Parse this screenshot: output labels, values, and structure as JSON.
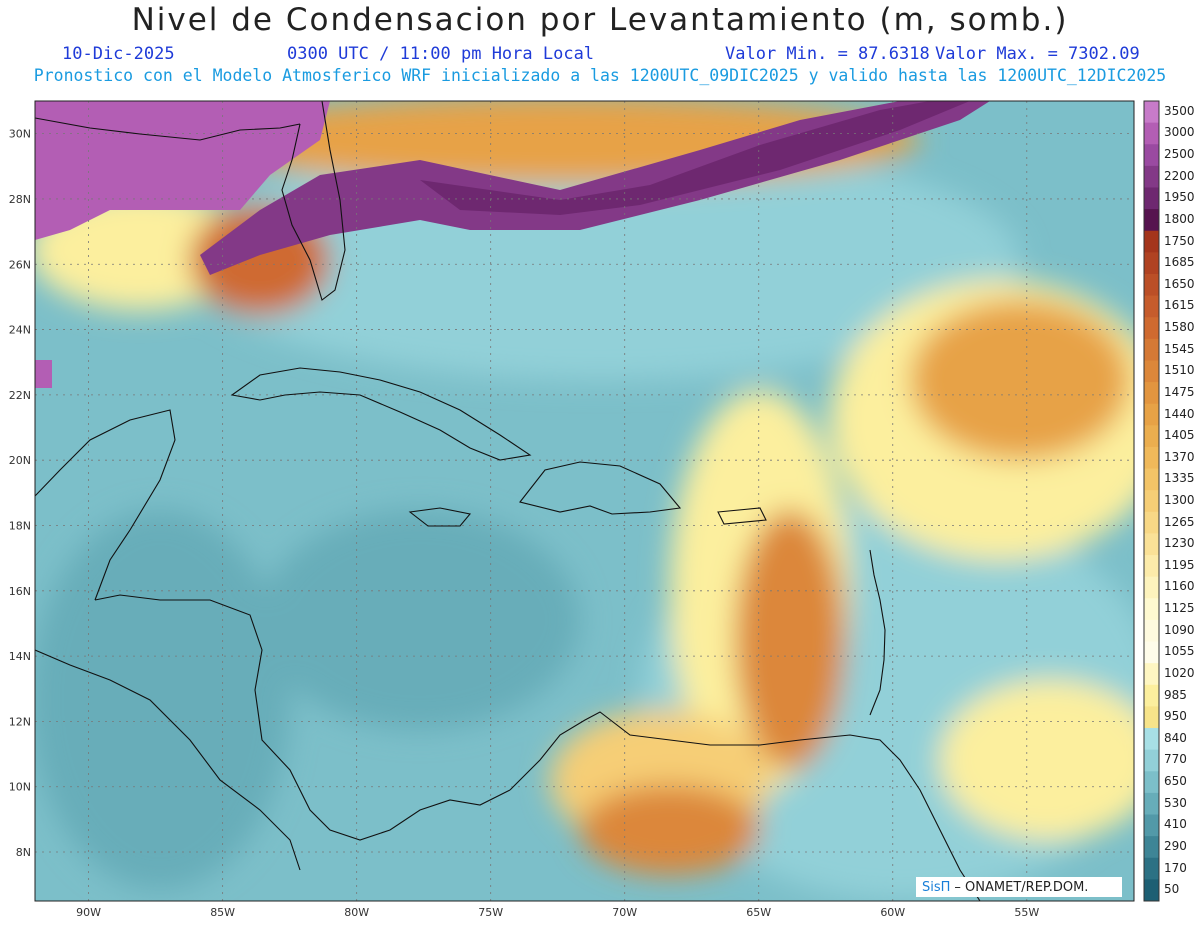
{
  "header": {
    "title": "Nivel de Condensacion por Levantamiento (m, somb.)",
    "date": "10-Dic-2025",
    "time": "0300 UTC / 11:00 pm Hora Local",
    "min_value": "Valor Min. = 87.6318",
    "max_value": "Valor Max. = 7302.09",
    "subtitle": "Pronostico con el Modelo Atmosferico WRF inicializado a las 1200UTC_09DIC2025 y valido hasta las  1200UTC_12DIC2025"
  },
  "map": {
    "lon_range": [
      -92,
      -51
    ],
    "lat_range": [
      6.5,
      31
    ],
    "lon_labels": [
      "90W",
      "85W",
      "80W",
      "75W",
      "70W",
      "65W",
      "60W",
      "55W"
    ],
    "lon_values": [
      -90,
      -85,
      -80,
      -75,
      -70,
      -65,
      -60,
      -55
    ],
    "lat_labels": [
      "30N",
      "28N",
      "26N",
      "24N",
      "22N",
      "20N",
      "18N",
      "16N",
      "14N",
      "12N",
      "10N",
      "8N"
    ],
    "lat_values": [
      30,
      28,
      26,
      24,
      22,
      20,
      18,
      16,
      14,
      12,
      10,
      8
    ]
  },
  "colorbar": {
    "labels": [
      "3500",
      "3000",
      "2500",
      "2200",
      "1950",
      "1800",
      "1750",
      "1685",
      "1650",
      "1615",
      "1580",
      "1545",
      "1510",
      "1475",
      "1440",
      "1405",
      "1370",
      "1335",
      "1300",
      "1265",
      "1230",
      "1195",
      "1160",
      "1125",
      "1090",
      "1055",
      "1020",
      "985",
      "950",
      "840",
      "770",
      "650",
      "530",
      "410",
      "290",
      "170",
      "50"
    ],
    "colors": [
      "#c77bc9",
      "#b35eb4",
      "#9a4aa1",
      "#833987",
      "#6e2870",
      "#56144f",
      "#a4351c",
      "#b04222",
      "#bb4f27",
      "#c65c2c",
      "#cf6a30",
      "#d57935",
      "#dc873a",
      "#e2953f",
      "#e7a246",
      "#ebae4f",
      "#f0b95a",
      "#f3c467",
      "#f6ce76",
      "#f8d886",
      "#fae197",
      "#fcebaa",
      "#fdf3bd",
      "#fef9d0",
      "#fefadf",
      "#fefcea",
      "#fef6c2",
      "#fcef9e",
      "#f7e48a",
      "#a8e0e6",
      "#92d0d8",
      "#7cbfc9",
      "#67adb9",
      "#5299a8",
      "#3e8596",
      "#2c7184",
      "#1d5f73"
    ]
  },
  "credit": {
    "brand": "SisΠ",
    "text": "– ONAMET/REP.DOM."
  }
}
